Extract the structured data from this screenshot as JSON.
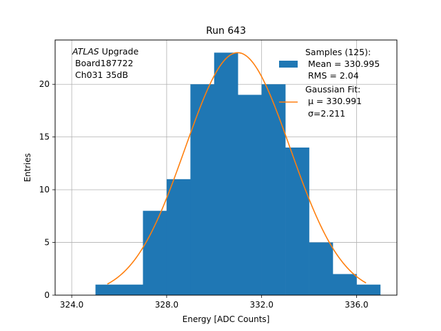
{
  "chart_data": {
    "type": "bar",
    "title": "Run 643",
    "xlabel": "Energy [ADC Counts]",
    "ylabel": "Entries",
    "xlim": [
      323.3,
      337.7
    ],
    "ylim": [
      0,
      24.2
    ],
    "x_ticks": [
      324.0,
      328.0,
      332.0,
      336.0
    ],
    "x_tick_labels": [
      "324.0",
      "328.0",
      "332.0",
      "336.0"
    ],
    "y_ticks": [
      0,
      5,
      10,
      15,
      20
    ],
    "y_tick_labels": [
      "0",
      "5",
      "10",
      "15",
      "20"
    ],
    "grid": true,
    "legend_placement": "top-right",
    "annotation": {
      "italic": "ATLAS",
      "rest": " Upgrade",
      "line2": "Board187722",
      "line3": "Ch031 35dB"
    },
    "histogram": {
      "name": "Samples (125):",
      "stats": [
        "Mean = 330.995",
        "RMS = 2.04"
      ],
      "color": "#1f77b4",
      "bin_edges": [
        325,
        326,
        327,
        328,
        329,
        330,
        331,
        332,
        333,
        334,
        335,
        336,
        337
      ],
      "counts": [
        1,
        1,
        8,
        11,
        20,
        23,
        19,
        20,
        14,
        5,
        2,
        1
      ]
    },
    "fit": {
      "name": "Gaussian Fit:",
      "mu_label": "μ = 330.991",
      "sigma_label": "σ=2.211",
      "color": "#ff7f0e",
      "mu": 330.991,
      "sigma": 2.211,
      "amplitude": 23.0,
      "x_range": [
        325.5,
        336.4
      ]
    }
  }
}
